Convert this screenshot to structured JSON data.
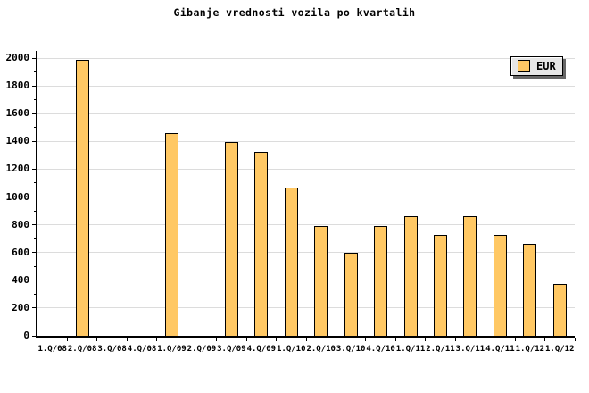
{
  "chart_data": {
    "type": "bar",
    "title": "Gibanje vrednosti vozila po kvartalih",
    "xlabel": "",
    "ylabel": "",
    "legend": [
      {
        "label": "EUR",
        "color": "#FFC864"
      }
    ],
    "legend_position": "top-right",
    "categories": [
      "1.Q/08",
      "2.Q/08",
      "3.Q/08",
      "4.Q/08",
      "1.Q/09",
      "2.Q/09",
      "3.Q/09",
      "4.Q/09",
      "1.Q/10",
      "2.Q/10",
      "3.Q/10",
      "4.Q/10",
      "1.Q/11",
      "2.Q/11",
      "3.Q/11",
      "4.Q/11",
      "1.Q/12",
      "1.Q/12"
    ],
    "series": [
      {
        "name": "EUR",
        "values": [
          null,
          1985,
          null,
          null,
          1460,
          null,
          1395,
          1325,
          1065,
          790,
          595,
          790,
          860,
          725,
          860,
          725,
          665,
          370
        ]
      }
    ],
    "ylim": [
      0,
      2000
    ],
    "yticks": [
      0,
      200,
      400,
      600,
      800,
      1000,
      1200,
      1400,
      1600,
      1800,
      2000
    ],
    "ytick_minor_step": 100,
    "grid": "horizontal-major"
  },
  "colors": {
    "background": "#FFFFFF",
    "bar_fill": "#FFC864",
    "bar_border": "#000000",
    "grid_line": "#DCDCDC",
    "axis": "#000000",
    "legend_bg": "#E6E6E6",
    "text": "#000000"
  }
}
